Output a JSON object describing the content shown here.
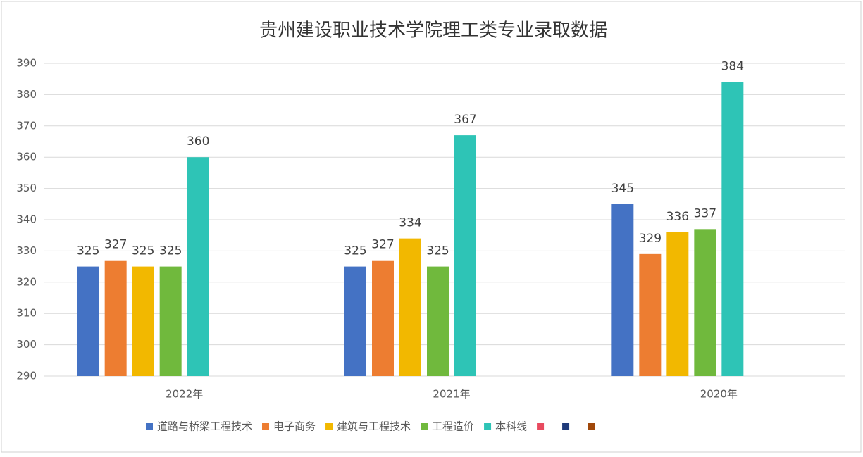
{
  "chart_data": {
    "type": "bar",
    "title": "贵州建设职业技术学院理工类专业录取数据",
    "categories": [
      "2022年",
      "2021年",
      "2020年"
    ],
    "series": [
      {
        "name": "道路与桥梁工程技术",
        "color": "#4472c4",
        "values": [
          325,
          325,
          345
        ]
      },
      {
        "name": "电子商务",
        "color": "#ed7d31",
        "values": [
          327,
          327,
          329
        ]
      },
      {
        "name": "建筑与工程技术",
        "color": "#f2b800",
        "values": [
          325,
          334,
          336
        ]
      },
      {
        "name": "工程造价",
        "color": "#70b93d",
        "values": [
          325,
          325,
          337
        ]
      },
      {
        "name": "本科线",
        "color": "#2ec4b6",
        "values": [
          360,
          367,
          384
        ]
      },
      {
        "name": null,
        "color": "#e84a5f",
        "values": [
          null,
          null,
          null
        ]
      },
      {
        "name": null,
        "color": "#1f3a7a",
        "values": [
          null,
          null,
          null
        ]
      },
      {
        "name": null,
        "color": "#a0480a",
        "values": [
          null,
          null,
          null
        ]
      }
    ],
    "ylim": [
      290,
      390
    ],
    "yticks": [
      290,
      300,
      310,
      320,
      330,
      340,
      350,
      360,
      370,
      380,
      390
    ],
    "grid": true
  }
}
